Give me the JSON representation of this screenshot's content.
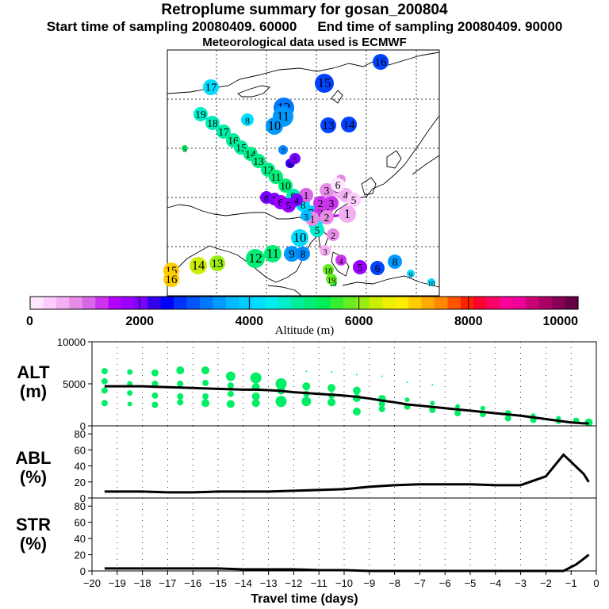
{
  "header": {
    "title": "Retroplume summary for gosan_200804",
    "start_label": "Start time of sampling 20080409. 60000",
    "end_label": "End time of sampling 20080409. 90000",
    "met_label": "Meteorological data used is ECMWF"
  },
  "colors": {
    "ground_dot": "#00ee66",
    "line": "#000000",
    "map_line": "#000000"
  },
  "colorbar": {
    "title": "Altitude (m)",
    "tick_labels": [
      "0",
      "2000",
      "4000",
      "6000",
      "8000",
      "10000"
    ],
    "min": 0,
    "max": 10000,
    "colors": [
      "#ffe6ff",
      "#ffccff",
      "#f2b0f2",
      "#e68ce6",
      "#d966e6",
      "#cc33ee",
      "#b300ff",
      "#9900ff",
      "#7a00ff",
      "#3300ee",
      "#0000ff",
      "#0033ff",
      "#0055ff",
      "#0077ff",
      "#0099ff",
      "#00bbff",
      "#00ccff",
      "#00ddff",
      "#00eeee",
      "#00eecc",
      "#00ee99",
      "#00ee77",
      "#00ee55",
      "#33ee33",
      "#66ee22",
      "#99ee11",
      "#ccee00",
      "#eeee00",
      "#ffee00",
      "#ffcc00",
      "#ffaa00",
      "#ff8800",
      "#ff5500",
      "#ff2200",
      "#ff0033",
      "#ff0066",
      "#ff0099",
      "#ee0099",
      "#cc0077",
      "#aa0066",
      "#880055",
      "#660044"
    ]
  },
  "map": {
    "markers": [
      {
        "label": "19",
        "color": "#00eecc",
        "size": 9
      },
      {
        "label": "18",
        "color": "#00eebb",
        "size": 9
      },
      {
        "label": "17",
        "color": "#00eeaa",
        "size": 9
      },
      {
        "label": "16",
        "color": "#00ee99",
        "size": 9
      },
      {
        "label": "15",
        "color": "#00ee99",
        "size": 9
      },
      {
        "label": "14",
        "color": "#00ee88",
        "size": 9
      },
      {
        "label": "13",
        "color": "#00ee88",
        "size": 9
      },
      {
        "label": "12",
        "color": "#00ee88",
        "size": 9
      },
      {
        "label": "11",
        "color": "#00ee77",
        "size": 9
      },
      {
        "label": "10",
        "color": "#00ee77",
        "size": 9
      },
      {
        "label": "9",
        "color": "#00eeaa",
        "size": 9
      },
      {
        "label": "8",
        "color": "#00ddff",
        "size": 9
      },
      {
        "label": "7",
        "color": "#00ccff",
        "size": 9
      },
      {
        "label": "6",
        "color": "#00ddff",
        "size": 9
      },
      {
        "label": "5",
        "color": "#00eecc",
        "size": 9
      },
      {
        "label": "4",
        "color": "#d966e6",
        "size": 9
      },
      {
        "label": "3",
        "color": "#cc33ee",
        "size": 9
      },
      {
        "label": "2",
        "color": "#cc33ee",
        "size": 9
      },
      {
        "label": "1",
        "color": "#e68ce6",
        "size": 9
      },
      {
        "label": "17",
        "color": "#00ddff",
        "size": 10
      },
      {
        "label": "16",
        "color": "#0044ff",
        "size": 10
      },
      {
        "label": "15",
        "color": "#0044ff",
        "size": 12
      },
      {
        "label": "12",
        "color": "#0077ff",
        "size": 13
      },
      {
        "label": "11",
        "color": "#0099ff",
        "size": 13
      },
      {
        "label": "10",
        "color": "#0099ff",
        "size": 11
      },
      {
        "label": "8",
        "color": "#00ddff",
        "size": 8
      },
      {
        "label": "13",
        "color": "#0044ff",
        "size": 10
      },
      {
        "label": "14",
        "color": "#0044ff",
        "size": 10
      },
      {
        "label": "7",
        "color": "#0088ff",
        "size": 6
      },
      {
        "label": "6",
        "color": "#3300ee",
        "size": 6
      },
      {
        "label": "5",
        "color": "#7a00ff",
        "size": 7
      },
      {
        "label": "5",
        "color": "#e68ce6",
        "size": 6
      },
      {
        "label": "4",
        "color": "#f2b0f2",
        "size": 9
      },
      {
        "label": "6",
        "color": "#f2b0f2",
        "size": 10
      },
      {
        "label": "3",
        "color": "#e68ce6",
        "size": 9
      },
      {
        "label": "2",
        "color": "#cc33ee",
        "size": 9
      },
      {
        "label": "1",
        "color": "#d966e6",
        "size": 9
      },
      {
        "label": "8",
        "color": "#7a00ff",
        "size": 8
      },
      {
        "label": "7",
        "color": "#7a00ff",
        "size": 8
      },
      {
        "label": "6",
        "color": "#9900ff",
        "size": 9
      },
      {
        "label": "5",
        "color": "#9900ff",
        "size": 9
      },
      {
        "label": "4",
        "color": "#7a00ff",
        "size": 8
      },
      {
        "label": "3",
        "color": "#00bbff",
        "size": 7
      },
      {
        "label": "2",
        "color": "#e68ce6",
        "size": 9
      },
      {
        "label": "1",
        "color": "#f2b0f2",
        "size": 11
      },
      {
        "label": "5",
        "color": "#ffccff",
        "size": 9
      },
      {
        "label": "6",
        "color": "#ffe6ff",
        "size": 9
      },
      {
        "label": "2",
        "color": "#e68ce6",
        "size": 8
      },
      {
        "label": "10",
        "color": "#00ddff",
        "size": 11
      },
      {
        "label": "9",
        "color": "#0099ff",
        "size": 10
      },
      {
        "label": "8",
        "color": "#0088ff",
        "size": 9
      },
      {
        "label": "3",
        "color": "#f2b0f2",
        "size": 7
      },
      {
        "label": "4",
        "color": "#cc33ee",
        "size": 7
      },
      {
        "label": "5",
        "color": "#9900ff",
        "size": 9
      },
      {
        "label": "6",
        "color": "#0044ff",
        "size": 9
      },
      {
        "label": "8",
        "color": "#0099ff",
        "size": 9
      },
      {
        "label": "9",
        "color": "#00ddff",
        "size": 5
      },
      {
        "label": "10",
        "color": "#00ddff",
        "size": 5
      },
      {
        "label": "10",
        "color": "#00ee66",
        "size": 5
      },
      {
        "label": "12",
        "color": "#00ee77",
        "size": 12
      },
      {
        "label": "11",
        "color": "#00ee77",
        "size": 11
      },
      {
        "label": "13",
        "color": "#99ee11",
        "size": 10
      },
      {
        "label": "14",
        "color": "#ccee00",
        "size": 11
      },
      {
        "label": "15",
        "color": "#ffcc00",
        "size": 10
      },
      {
        "label": "16",
        "color": "#ffcc00",
        "size": 10
      },
      {
        "label": "18",
        "color": "#66ee22",
        "size": 7
      },
      {
        "label": "19",
        "color": "#66ee22",
        "size": 7
      },
      {
        "label": "5",
        "color": "#00ee66",
        "size": 4
      }
    ]
  },
  "chart_data": [
    {
      "type": "scatter",
      "panel": "ALT",
      "ylabel": "ALT\n(m)",
      "ylim": [
        0,
        10000
      ],
      "yticks": [
        0,
        5000,
        10000
      ],
      "xlim": [
        -20,
        0
      ],
      "mean_line": {
        "x": [
          -19.5,
          -19,
          -18.5,
          -18,
          -17.5,
          -17,
          -16.5,
          -16,
          -15.5,
          -15,
          -14.5,
          -14,
          -13.5,
          -13,
          -12.5,
          -12,
          -11.5,
          -11,
          -10.5,
          -10,
          -9.5,
          -9,
          -8.5,
          -8,
          -7.5,
          -7,
          -6.5,
          -6,
          -5.5,
          -5,
          -4.5,
          -4,
          -3.5,
          -3,
          -2.5,
          -2,
          -1.5,
          -1,
          -0.5,
          -0.3
        ],
        "y": [
          4700,
          4700,
          4700,
          4700,
          4650,
          4600,
          4550,
          4500,
          4450,
          4400,
          4350,
          4300,
          4300,
          4250,
          4150,
          4000,
          3900,
          3800,
          3700,
          3600,
          3450,
          3250,
          3000,
          2800,
          2550,
          2400,
          2250,
          2100,
          1950,
          1800,
          1650,
          1500,
          1350,
          1200,
          1000,
          800,
          600,
          400,
          300,
          300
        ]
      },
      "points": [
        {
          "x": -19.5,
          "y": 6500,
          "s": 4
        },
        {
          "x": -19.5,
          "y": 5300,
          "s": 4
        },
        {
          "x": -19.5,
          "y": 4200,
          "s": 4
        },
        {
          "x": -19.5,
          "y": 2700,
          "s": 4
        },
        {
          "x": -18.5,
          "y": 6400,
          "s": 3.5
        },
        {
          "x": -18.5,
          "y": 5000,
          "s": 3.5
        },
        {
          "x": -18.5,
          "y": 3900,
          "s": 3.5
        },
        {
          "x": -18.5,
          "y": 2600,
          "s": 3
        },
        {
          "x": -17.5,
          "y": 6300,
          "s": 4.5
        },
        {
          "x": -17.5,
          "y": 5000,
          "s": 4
        },
        {
          "x": -17.5,
          "y": 3600,
          "s": 4
        },
        {
          "x": -17.5,
          "y": 2500,
          "s": 4
        },
        {
          "x": -16.5,
          "y": 6600,
          "s": 5
        },
        {
          "x": -16.5,
          "y": 5000,
          "s": 4
        },
        {
          "x": -16.5,
          "y": 3500,
          "s": 4
        },
        {
          "x": -16.5,
          "y": 2800,
          "s": 4
        },
        {
          "x": -15.5,
          "y": 6600,
          "s": 5
        },
        {
          "x": -15.5,
          "y": 5100,
          "s": 4
        },
        {
          "x": -15.5,
          "y": 3500,
          "s": 4
        },
        {
          "x": -15.5,
          "y": 2700,
          "s": 5
        },
        {
          "x": -14.5,
          "y": 5900,
          "s": 6
        },
        {
          "x": -14.5,
          "y": 4800,
          "s": 4
        },
        {
          "x": -14.5,
          "y": 3800,
          "s": 4
        },
        {
          "x": -14.5,
          "y": 2600,
          "s": 5
        },
        {
          "x": -13.5,
          "y": 5700,
          "s": 7
        },
        {
          "x": -13.5,
          "y": 4600,
          "s": 5
        },
        {
          "x": -13.5,
          "y": 3500,
          "s": 5
        },
        {
          "x": -13.5,
          "y": 2700,
          "s": 5
        },
        {
          "x": -12.5,
          "y": 5000,
          "s": 7
        },
        {
          "x": -12.5,
          "y": 4200,
          "s": 5
        },
        {
          "x": -12.5,
          "y": 2900,
          "s": 7
        },
        {
          "x": -11.5,
          "y": 6500,
          "s": 1
        },
        {
          "x": -11.5,
          "y": 4700,
          "s": 5
        },
        {
          "x": -11.5,
          "y": 3800,
          "s": 4
        },
        {
          "x": -11.5,
          "y": 2900,
          "s": 6
        },
        {
          "x": -10.5,
          "y": 6400,
          "s": 1
        },
        {
          "x": -10.5,
          "y": 4500,
          "s": 5
        },
        {
          "x": -10.5,
          "y": 3600,
          "s": 4
        },
        {
          "x": -10.5,
          "y": 2800,
          "s": 5
        },
        {
          "x": -9.5,
          "y": 6100,
          "s": 1
        },
        {
          "x": -9.5,
          "y": 4200,
          "s": 5
        },
        {
          "x": -9.5,
          "y": 3300,
          "s": 5
        },
        {
          "x": -9.5,
          "y": 1700,
          "s": 5
        },
        {
          "x": -8.5,
          "y": 5900,
          "s": 1
        },
        {
          "x": -8.5,
          "y": 3200,
          "s": 5
        },
        {
          "x": -8.5,
          "y": 2600,
          "s": 4
        },
        {
          "x": -8.5,
          "y": 2000,
          "s": 4
        },
        {
          "x": -7.5,
          "y": 5200,
          "s": 1
        },
        {
          "x": -7.5,
          "y": 3100,
          "s": 3
        },
        {
          "x": -7.5,
          "y": 2300,
          "s": 4
        },
        {
          "x": -6.5,
          "y": 4900,
          "s": 1
        },
        {
          "x": -6.5,
          "y": 2700,
          "s": 3
        },
        {
          "x": -6.5,
          "y": 1900,
          "s": 4
        },
        {
          "x": -5.5,
          "y": 2300,
          "s": 3
        },
        {
          "x": -5.5,
          "y": 1500,
          "s": 4
        },
        {
          "x": -4.5,
          "y": 2100,
          "s": 3
        },
        {
          "x": -4.5,
          "y": 1400,
          "s": 4
        },
        {
          "x": -3.5,
          "y": 1500,
          "s": 4
        },
        {
          "x": -3.5,
          "y": 900,
          "s": 4
        },
        {
          "x": -2.5,
          "y": 1200,
          "s": 3
        },
        {
          "x": -2.5,
          "y": 700,
          "s": 4
        },
        {
          "x": -1.5,
          "y": 900,
          "s": 3
        },
        {
          "x": -1.5,
          "y": 500,
          "s": 3
        },
        {
          "x": -0.8,
          "y": 600,
          "s": 4
        },
        {
          "x": -0.3,
          "y": 400,
          "s": 5
        }
      ]
    },
    {
      "type": "line",
      "panel": "ABL",
      "ylabel": "ABL\n(%)",
      "ylim": [
        0,
        90
      ],
      "yticks": [
        0,
        20,
        40,
        60,
        80
      ],
      "xlim": [
        -20,
        0
      ],
      "x": [
        -19.5,
        -18,
        -17,
        -16,
        -15,
        -14,
        -13,
        -12,
        -11,
        -10,
        -9,
        -8,
        -7,
        -6,
        -5,
        -4,
        -3,
        -2,
        -1.3,
        -0.5,
        -0.3
      ],
      "values": [
        8,
        8,
        7,
        7,
        8,
        8,
        8,
        9,
        10,
        11,
        14,
        16,
        17,
        17,
        17,
        16,
        16,
        27,
        54,
        30,
        20
      ]
    },
    {
      "type": "line",
      "panel": "STR",
      "ylabel": "STR\n(%)",
      "ylim": [
        0,
        90
      ],
      "yticks": [
        0,
        20,
        40,
        60,
        80
      ],
      "xlim": [
        -20,
        0
      ],
      "x": [
        -19.5,
        -18,
        -17,
        -16,
        -15,
        -14,
        -13,
        -12,
        -11,
        -10,
        -9,
        -8,
        -7,
        -6,
        -5,
        -4,
        -3,
        -2,
        -1.3,
        -0.8,
        -0.5,
        -0.3
      ],
      "values": [
        3,
        3,
        3,
        3,
        3,
        2,
        2,
        2,
        1,
        1,
        0,
        0,
        0,
        0,
        0,
        0,
        0,
        0,
        0,
        8,
        15,
        20
      ],
      "xlabel": "Travel time (days)",
      "xticks": [
        -20,
        -19,
        -18,
        -17,
        -16,
        -15,
        -14,
        -13,
        -12,
        -11,
        -10,
        -9,
        -8,
        -7,
        -6,
        -5,
        -4,
        -3,
        -2,
        -1,
        0
      ]
    }
  ]
}
